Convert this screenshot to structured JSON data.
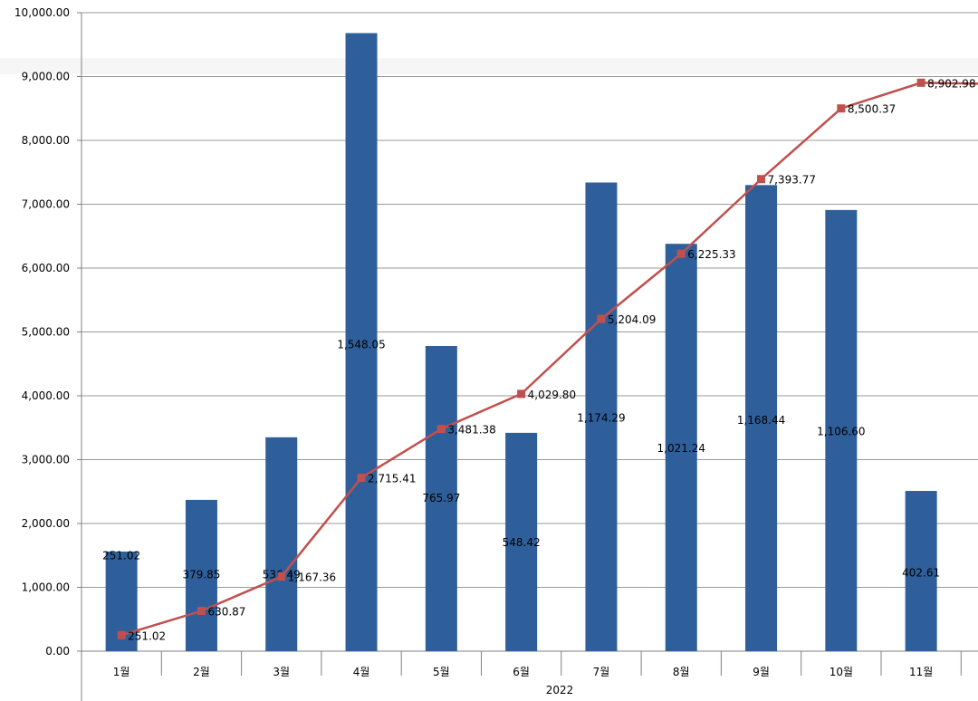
{
  "chart_data": {
    "type": "bar",
    "categories": [
      "1월",
      "2월",
      "3월",
      "4월",
      "5월",
      "6월",
      "7월",
      "8월",
      "9월",
      "10월",
      "11월"
    ],
    "group_label": "2022",
    "ylim": [
      0,
      10000
    ],
    "y_ticks": [
      "0.00",
      "1,000.00",
      "2,000.00",
      "3,000.00",
      "4,000.00",
      "5,000.00",
      "6,000.00",
      "7,000.00",
      "8,000.00",
      "9,000.00",
      "10,000.00"
    ],
    "y_tick_values": [
      0,
      1000,
      2000,
      3000,
      4000,
      5000,
      6000,
      7000,
      8000,
      9000,
      10000
    ],
    "grid": true,
    "series": [
      {
        "kind": "bar",
        "color": "#2E5F9A",
        "values": [
          1560,
          2370,
          3350,
          9680,
          4780,
          3420,
          7340,
          6380,
          7300,
          6910,
          2510
        ],
        "data_labels": [
          "251.02",
          "379.85",
          "536.49",
          "1,548.05",
          "765.97",
          "548.42",
          "1,174.29",
          "1,021.24",
          "1,168.44",
          "1,106.60",
          "402.61"
        ],
        "label_positions": [
          1500,
          1200,
          1200,
          4800,
          2400,
          1700,
          3650,
          3180,
          3620,
          3440,
          1230
        ]
      },
      {
        "kind": "line",
        "color": "#C0504D",
        "values": [
          251.02,
          630.87,
          1167.36,
          2715.41,
          3481.38,
          4029.8,
          5204.09,
          6225.33,
          7393.77,
          8500.37,
          8902.98
        ],
        "data_labels": [
          "251.02",
          "630.87",
          "1,167.36",
          "2,715.41",
          "3,481.38",
          "4,029.80",
          "5,204.09",
          "6,225.33",
          "7,393.77",
          "8,500.37",
          "8,902.98"
        ]
      }
    ]
  }
}
